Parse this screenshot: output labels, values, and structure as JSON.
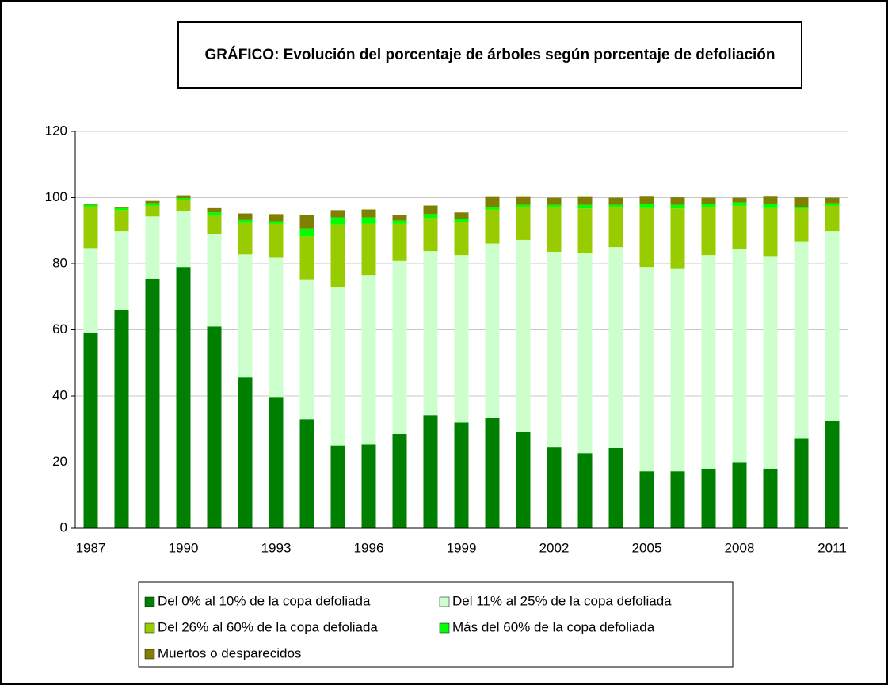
{
  "chart_data": {
    "type": "stacked_bar",
    "title": "GRÁFICO: Evolución del porcentaje de árboles según porcentaje de defoliación",
    "categories": [
      "1987",
      null,
      null,
      "1990",
      null,
      null,
      "1993",
      null,
      null,
      "1996",
      null,
      null,
      "1999",
      null,
      null,
      "2002",
      null,
      null,
      "2005",
      null,
      null,
      "2008",
      null,
      null,
      "2011"
    ],
    "series": [
      {
        "name": "Del 0% al 10% de la copa defoliada",
        "color": "#008000",
        "values": [
          59,
          66,
          75.5,
          79,
          61,
          45.7,
          39.7,
          33,
          25,
          25.3,
          28.5,
          34.2,
          32,
          33.3,
          29,
          24.4,
          22.7,
          24.2,
          17.2,
          17.2,
          18,
          19.8,
          18,
          27.2,
          32.5
        ]
      },
      {
        "name": "Del 11% al 25% de la copa defoliada",
        "color": "#ccffcc",
        "values": [
          25.7,
          23.8,
          18.8,
          17,
          28,
          37.1,
          42.1,
          42.3,
          47.8,
          51.3,
          52.5,
          49.6,
          50.6,
          52.8,
          58.2,
          59.2,
          60.6,
          60.8,
          61.8,
          61.2,
          64.6,
          64.7,
          64.3,
          59.6,
          57.3
        ]
      },
      {
        "name": "Del 26% al 60% de la copa defoliada",
        "color": "#99cc00",
        "values": [
          12.3,
          6.4,
          3.2,
          3.3,
          5.5,
          9.7,
          10.2,
          13,
          19,
          15.4,
          11,
          10,
          10.1,
          10.3,
          9.8,
          13.5,
          13.4,
          12,
          17.8,
          18.3,
          14.4,
          13,
          14.5,
          9.8,
          7.8
        ]
      },
      {
        "name": "Más del 60% de la copa defoliada",
        "color": "#00ff00",
        "values": [
          0.8,
          0.6,
          0.8,
          0.5,
          1,
          0.7,
          0.8,
          2.3,
          2.2,
          2,
          1,
          1.2,
          0.8,
          0.6,
          0.8,
          0.7,
          1.1,
          0.8,
          1.2,
          1.1,
          1,
          1,
          1.4,
          0.6,
          0.7
        ]
      },
      {
        "name": "Muertos o desparecidos",
        "color": "#808000",
        "values": [
          0.2,
          0.3,
          0.7,
          0.9,
          1.3,
          2,
          2.2,
          4.2,
          2.2,
          2.4,
          1.8,
          2.6,
          2,
          3.2,
          2.4,
          2.2,
          2.4,
          2.2,
          2.3,
          2.3,
          2,
          1.5,
          2.1,
          2.9,
          1.7
        ]
      }
    ],
    "ylim": [
      0,
      120
    ],
    "yticks": [
      0,
      20,
      40,
      60,
      80,
      100,
      120
    ],
    "grid": true,
    "legend": "bottom"
  }
}
